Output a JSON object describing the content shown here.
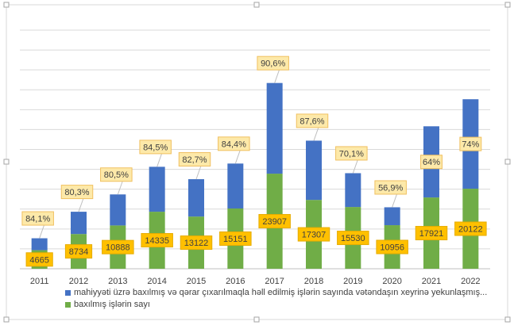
{
  "chart_data": {
    "type": "bar",
    "stacked": true,
    "categories": [
      "2011",
      "2012",
      "2013",
      "2014",
      "2015",
      "2016",
      "2017",
      "2018",
      "2019",
      "2020",
      "2021",
      "2022"
    ],
    "series": [
      {
        "name": "baxılmış işlərin sayı",
        "color": "#70ad47",
        "values": [
          4665,
          8734,
          10888,
          14335,
          13122,
          15151,
          23907,
          17307,
          15530,
          10956,
          17921,
          20122
        ],
        "labels": [
          "4665",
          "8734",
          "10888",
          "14335",
          "13122",
          "15151",
          "23907",
          "17307",
          "15530",
          "10956",
          "17921",
          "20122"
        ]
      },
      {
        "name": "mahiyyəti üzrə baxılmış və qərar çıxarılmaqla həll edilmiş işlərin sayında vətəndaşın xeyrinə yekunlaşmış...",
        "color": "#4472c4",
        "values": [
          3000,
          5600,
          7800,
          11300,
          9400,
          11300,
          22800,
          14900,
          8500,
          4500,
          17900,
          22500
        ],
        "labels": [
          "84,1%",
          "80,3%",
          "80,5%",
          "84,5%",
          "82,7%",
          "84,4%",
          "90,6%",
          "87,6%",
          "70,1%",
          "56,9%",
          "64%",
          "74%"
        ]
      }
    ],
    "ylim": [
      0,
      60000
    ],
    "grid": true,
    "legend_position": "bottom"
  },
  "legend": {
    "entries": [
      {
        "label": "mahiyyəti üzrə baxılmış və qərar çıxarılmaqla həll edilmiş işlərin sayında vətəndaşın xeyrinə yekunlaşmış...",
        "color": "#4472c4"
      },
      {
        "label": "baxılmış işlərin sayı",
        "color": "#70ad47"
      }
    ]
  }
}
